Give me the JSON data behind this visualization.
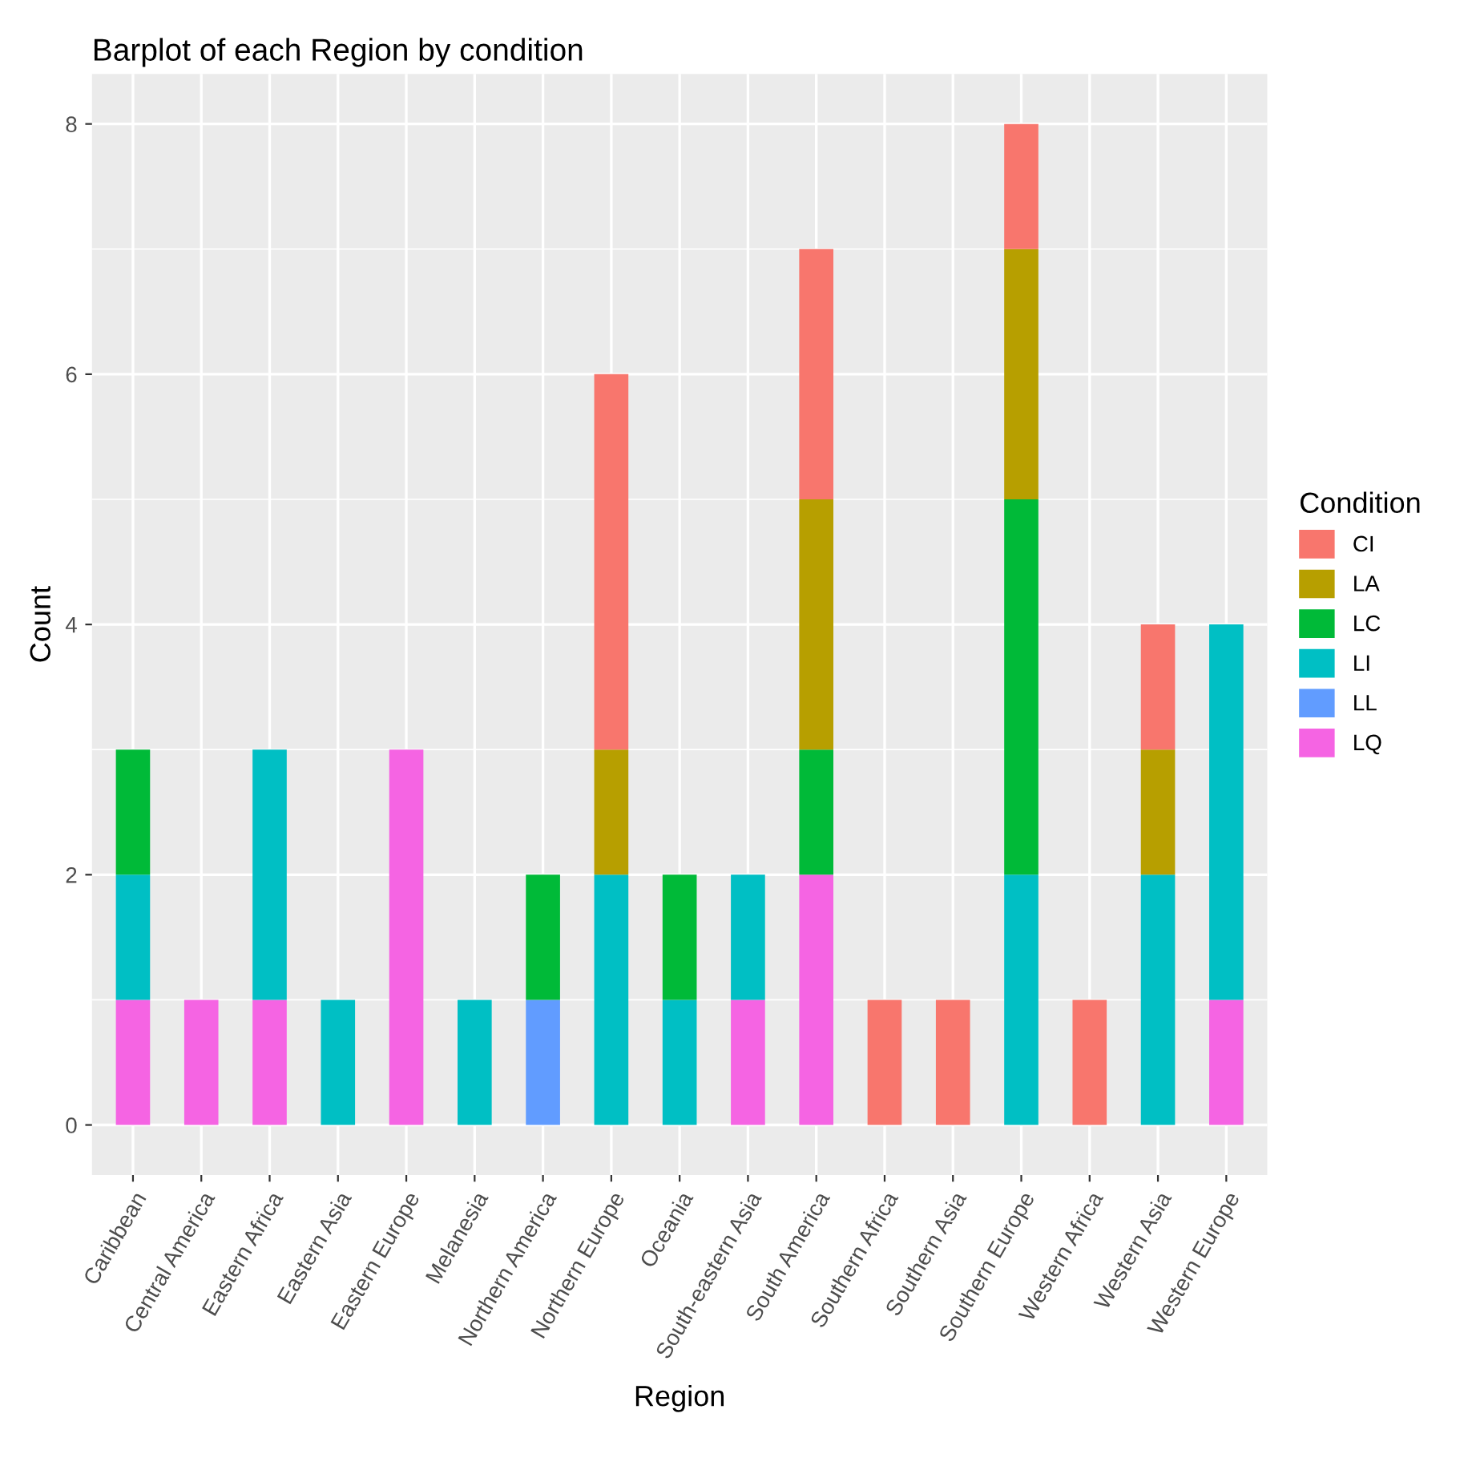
{
  "chart_data": {
    "type": "bar",
    "title": "Barplot of each Region by condition",
    "xlabel": "Region",
    "ylabel": "Count",
    "legend_title": "Condition",
    "stacked": true,
    "grid": true,
    "legend": "right",
    "ylim": [
      -0.4,
      8.4
    ],
    "yticks": [
      0,
      2,
      4,
      6,
      8
    ],
    "categories": [
      "Caribbean",
      "Central America",
      "Eastern Africa",
      "Eastern Asia",
      "Eastern Europe",
      "Melanesia",
      "Northern America",
      "Northern Europe",
      "Oceania",
      "South-eastern Asia",
      "South America",
      "Southern Africa",
      "Southern Asia",
      "Southern Europe",
      "Western Africa",
      "Western Asia",
      "Western Europe"
    ],
    "series": [
      {
        "name": "LQ",
        "color": "#f564e3",
        "values": [
          1,
          1,
          1,
          null,
          3,
          null,
          null,
          null,
          null,
          1,
          2,
          null,
          null,
          null,
          null,
          null,
          1
        ]
      },
      {
        "name": "LL",
        "color": "#619cff",
        "values": [
          null,
          null,
          null,
          null,
          null,
          null,
          1,
          null,
          null,
          null,
          null,
          null,
          null,
          null,
          null,
          null,
          null
        ]
      },
      {
        "name": "LI",
        "color": "#00bfc4",
        "values": [
          1,
          null,
          2,
          1,
          null,
          1,
          null,
          2,
          1,
          1,
          null,
          null,
          null,
          2,
          null,
          2,
          3
        ]
      },
      {
        "name": "LC",
        "color": "#00ba38",
        "values": [
          1,
          null,
          null,
          null,
          null,
          null,
          1,
          null,
          1,
          null,
          1,
          null,
          null,
          3,
          null,
          null,
          null
        ]
      },
      {
        "name": "LA",
        "color": "#b79f00",
        "values": [
          null,
          null,
          null,
          null,
          null,
          null,
          null,
          1,
          null,
          null,
          2,
          null,
          null,
          2,
          null,
          1,
          null
        ]
      },
      {
        "name": "CI",
        "color": "#f8766d",
        "values": [
          null,
          null,
          null,
          null,
          null,
          null,
          null,
          3,
          null,
          null,
          2,
          1,
          1,
          1,
          1,
          1,
          null
        ]
      }
    ]
  }
}
